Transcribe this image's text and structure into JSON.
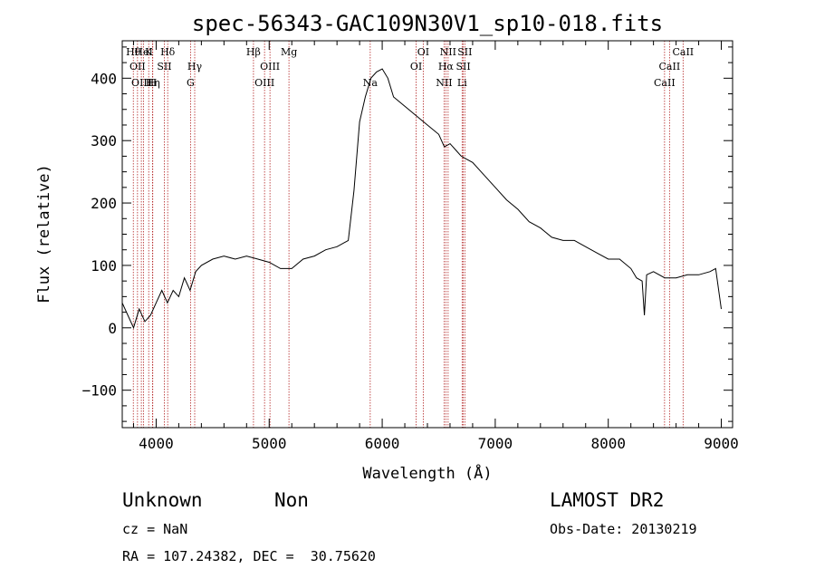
{
  "chart_data": {
    "type": "line",
    "title": "spec-56343-GAC109N30V1_sp10-018.fits",
    "xlabel": "Wavelength (Å)",
    "ylabel": "Flux (relative)",
    "xlim": [
      3700,
      9100
    ],
    "ylim": [
      -160,
      460
    ],
    "xticks": [
      4000,
      5000,
      6000,
      7000,
      8000,
      9000
    ],
    "yticks": [
      -100,
      0,
      100,
      200,
      300,
      400
    ],
    "grid": false,
    "legend": "none",
    "series": [
      {
        "color": "#000000",
        "x": [
          3700,
          3750,
          3800,
          3850,
          3900,
          3950,
          4000,
          4050,
          4100,
          4150,
          4200,
          4250,
          4300,
          4350,
          4400,
          4500,
          4600,
          4700,
          4800,
          4900,
          5000,
          5100,
          5200,
          5300,
          5400,
          5500,
          5600,
          5700,
          5750,
          5800,
          5850,
          5900,
          5950,
          6000,
          6050,
          6100,
          6200,
          6300,
          6400,
          6500,
          6550,
          6600,
          6650,
          6700,
          6750,
          6800,
          6900,
          7000,
          7100,
          7200,
          7300,
          7400,
          7500,
          7600,
          7700,
          7800,
          7900,
          8000,
          8100,
          8200,
          8250,
          8300,
          8320,
          8340,
          8400,
          8500,
          8600,
          8700,
          8800,
          8900,
          8950,
          9000
        ],
        "y": [
          40,
          20,
          0,
          30,
          10,
          20,
          40,
          60,
          40,
          60,
          50,
          80,
          60,
          90,
          100,
          110,
          115,
          110,
          115,
          110,
          105,
          95,
          95,
          110,
          115,
          125,
          130,
          140,
          220,
          330,
          370,
          400,
          410,
          415,
          400,
          370,
          355,
          340,
          325,
          310,
          290,
          295,
          285,
          275,
          270,
          265,
          245,
          225,
          205,
          190,
          170,
          160,
          145,
          140,
          140,
          130,
          120,
          110,
          110,
          95,
          80,
          75,
          20,
          85,
          90,
          80,
          80,
          85,
          85,
          90,
          95,
          30
        ]
      }
    ],
    "lines": [
      {
        "wave": 3798,
        "label": "Hθ",
        "row": 0
      },
      {
        "wave": 3835,
        "label": "OII",
        "row": 1
      },
      {
        "wave": 3869,
        "label": "OIII",
        "row": 2
      },
      {
        "wave": 3889,
        "label": "HeI",
        "row": 0
      },
      {
        "wave": 3934,
        "label": "K",
        "row": 0
      },
      {
        "wave": 3970,
        "label": "Hη",
        "row": 2
      },
      {
        "wave": 3968,
        "label": "H",
        "row": 2
      },
      {
        "wave": 4072,
        "label": "SII",
        "row": 1
      },
      {
        "wave": 4102,
        "label": "Hδ",
        "row": 0
      },
      {
        "wave": 4304,
        "label": "G",
        "row": 2
      },
      {
        "wave": 4341,
        "label": "Hγ",
        "row": 1
      },
      {
        "wave": 4861,
        "label": "Hβ",
        "row": 0
      },
      {
        "wave": 4959,
        "label": "OIII",
        "row": 2
      },
      {
        "wave": 5007,
        "label": "OIII",
        "row": 1
      },
      {
        "wave": 5175,
        "label": "Mg",
        "row": 0
      },
      {
        "wave": 5894,
        "label": "Na",
        "row": 2
      },
      {
        "wave": 6300,
        "label": "OI",
        "row": 1
      },
      {
        "wave": 6363,
        "label": "OI",
        "row": 0
      },
      {
        "wave": 6548,
        "label": "NII",
        "row": 2
      },
      {
        "wave": 6563,
        "label": "Hα",
        "row": 1
      },
      {
        "wave": 6583,
        "label": "NII",
        "row": 0
      },
      {
        "wave": 6707,
        "label": "Li",
        "row": 2
      },
      {
        "wave": 6717,
        "label": "SII",
        "row": 1
      },
      {
        "wave": 6731,
        "label": "SII",
        "row": 0
      },
      {
        "wave": 8498,
        "label": "CaII",
        "row": 2
      },
      {
        "wave": 8542,
        "label": "CaII",
        "row": 1
      },
      {
        "wave": 8662,
        "label": "CaII",
        "row": 0
      }
    ]
  },
  "footer": {
    "object_class": "Unknown",
    "subclass": "Non",
    "redshift": "cz = NaN",
    "coords": "RA = 107.24382, DEC =  30.75620",
    "survey": "LAMOST DR2",
    "obs_date": "Obs-Date: 20130219"
  }
}
